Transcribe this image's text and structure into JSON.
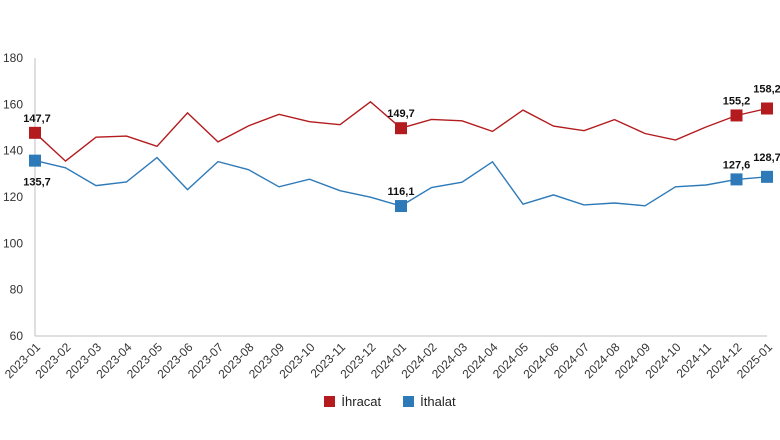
{
  "chart_data": {
    "type": "line",
    "categories": [
      "2023-01",
      "2023-02",
      "2023-03",
      "2023-04",
      "2023-05",
      "2023-06",
      "2023-07",
      "2023-08",
      "2023-09",
      "2023-10",
      "2023-11",
      "2023-12",
      "2024-01",
      "2024-02",
      "2024-03",
      "2024-04",
      "2024-05",
      "2024-06",
      "2024-07",
      "2024-08",
      "2024-09",
      "2024-10",
      "2024-11",
      "2024-12",
      "2025-01"
    ],
    "ylim": [
      60,
      180
    ],
    "yticks": [
      "60",
      "80",
      "100",
      "120",
      "140",
      "160",
      "180"
    ],
    "series": [
      {
        "name": "İhracat",
        "color": "#b31b1e",
        "values": [
          147.7,
          135.5,
          145.8,
          146.3,
          141.9,
          156.3,
          143.8,
          150.7,
          155.7,
          152.5,
          151.2,
          161.1,
          149.7,
          153.5,
          152.9,
          148.3,
          157.5,
          150.6,
          148.6,
          153.4,
          147.4,
          144.6,
          150.2,
          155.2,
          158.2
        ],
        "markers": [
          {
            "index": 0,
            "label": "147,7"
          },
          {
            "index": 12,
            "label": "149,7"
          },
          {
            "index": 23,
            "label": "155,2"
          },
          {
            "index": 24,
            "label": "158,2"
          }
        ]
      },
      {
        "name": "İthalat",
        "color": "#2e7ab8",
        "values": [
          135.7,
          132.6,
          124.9,
          126.5,
          137.0,
          123.2,
          135.3,
          131.8,
          124.4,
          127.7,
          122.7,
          119.9,
          116.1,
          124.1,
          126.4,
          135.2,
          116.9,
          120.9,
          116.6,
          117.4,
          116.2,
          124.4,
          125.2,
          127.6,
          128.7
        ],
        "markers": [
          {
            "index": 0,
            "label": "135,7"
          },
          {
            "index": 12,
            "label": "116,1"
          },
          {
            "index": 23,
            "label": "127,6"
          },
          {
            "index": 24,
            "label": "128,7"
          }
        ]
      }
    ],
    "grid": false,
    "legend_position": "bottom"
  },
  "legend": {
    "items": [
      {
        "label": "İhracat",
        "color": "#b31b1e"
      },
      {
        "label": "İthalat",
        "color": "#2e7ab8"
      }
    ]
  }
}
